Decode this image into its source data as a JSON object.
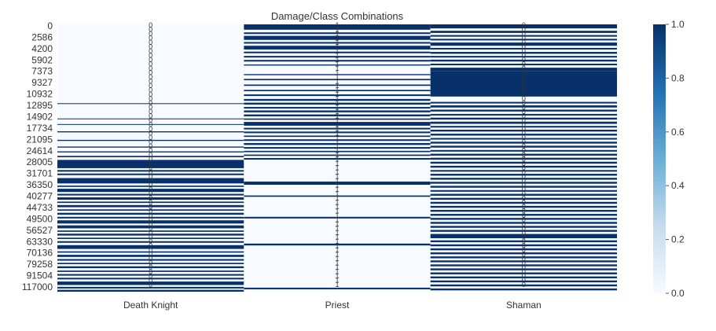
{
  "chart_data": {
    "type": "heatmap",
    "title": "Damage/Class Combinations",
    "xlabel": "",
    "ylabel": "",
    "categories": [
      "Death Knight",
      "Priest",
      "Shaman"
    ],
    "y_tick_labels": [
      "0",
      "2586",
      "4200",
      "5902",
      "7373",
      "9327",
      "10932",
      "12895",
      "14902",
      "17734",
      "21095",
      "24614",
      "28005",
      "31701",
      "36350",
      "40277",
      "44733",
      "49500",
      "56527",
      "63330",
      "70136",
      "79258",
      "91504",
      "117000"
    ],
    "value_range": [
      0.0,
      1.0
    ],
    "colormap": "Blues",
    "colorbar": {
      "ticks": [
        0.0,
        0.2,
        0.4,
        0.6,
        0.8,
        1.0
      ],
      "tick_labels": [
        "0.0",
        "0.2",
        "0.4",
        "0.6",
        "0.8",
        "1.0"
      ]
    },
    "series": [
      {
        "column": "Death Knight",
        "bands": [
          {
            "from": 0.295,
            "to": 0.298
          },
          {
            "from": 0.352,
            "to": 0.355
          },
          {
            "from": 0.373,
            "to": 0.376
          },
          {
            "from": 0.4,
            "to": 0.404
          },
          {
            "from": 0.432,
            "to": 0.436
          },
          {
            "from": 0.457,
            "to": 0.461
          },
          {
            "from": 0.475,
            "to": 0.479
          },
          {
            "from": 0.492,
            "to": 0.497
          },
          {
            "from": 0.507,
            "to": 0.538
          },
          {
            "from": 0.545,
            "to": 0.551
          },
          {
            "from": 0.558,
            "to": 0.564
          },
          {
            "from": 0.575,
            "to": 0.595
          },
          {
            "from": 0.603,
            "to": 0.608
          },
          {
            "from": 0.615,
            "to": 0.627
          },
          {
            "from": 0.634,
            "to": 0.64
          },
          {
            "from": 0.647,
            "to": 0.656
          },
          {
            "from": 0.663,
            "to": 0.668
          },
          {
            "from": 0.676,
            "to": 0.684
          },
          {
            "from": 0.692,
            "to": 0.697
          },
          {
            "from": 0.705,
            "to": 0.712
          },
          {
            "from": 0.72,
            "to": 0.726
          },
          {
            "from": 0.733,
            "to": 0.745
          },
          {
            "from": 0.752,
            "to": 0.763
          },
          {
            "from": 0.771,
            "to": 0.776
          },
          {
            "from": 0.783,
            "to": 0.79
          },
          {
            "from": 0.798,
            "to": 0.803
          },
          {
            "from": 0.811,
            "to": 0.817
          },
          {
            "from": 0.826,
            "to": 0.84
          },
          {
            "from": 0.849,
            "to": 0.854
          },
          {
            "from": 0.862,
            "to": 0.87
          },
          {
            "from": 0.878,
            "to": 0.884
          },
          {
            "from": 0.892,
            "to": 0.897
          },
          {
            "from": 0.905,
            "to": 0.912
          },
          {
            "from": 0.921,
            "to": 0.926
          },
          {
            "from": 0.934,
            "to": 0.94
          },
          {
            "from": 0.948,
            "to": 0.954
          },
          {
            "from": 0.962,
            "to": 0.975
          },
          {
            "from": 0.982,
            "to": 0.988
          },
          {
            "from": 0.993,
            "to": 1.0
          }
        ]
      },
      {
        "column": "Priest",
        "bands": [
          {
            "from": 0.0,
            "to": 0.02
          },
          {
            "from": 0.03,
            "to": 0.036
          },
          {
            "from": 0.043,
            "to": 0.058
          },
          {
            "from": 0.066,
            "to": 0.072
          },
          {
            "from": 0.08,
            "to": 0.094
          },
          {
            "from": 0.102,
            "to": 0.108
          },
          {
            "from": 0.118,
            "to": 0.124
          },
          {
            "from": 0.133,
            "to": 0.139
          },
          {
            "from": 0.15,
            "to": 0.154
          },
          {
            "from": 0.186,
            "to": 0.19
          },
          {
            "from": 0.204,
            "to": 0.209
          },
          {
            "from": 0.225,
            "to": 0.23
          },
          {
            "from": 0.245,
            "to": 0.25
          },
          {
            "from": 0.262,
            "to": 0.268
          },
          {
            "from": 0.279,
            "to": 0.286
          },
          {
            "from": 0.293,
            "to": 0.3
          },
          {
            "from": 0.309,
            "to": 0.315
          },
          {
            "from": 0.322,
            "to": 0.329
          },
          {
            "from": 0.337,
            "to": 0.344
          },
          {
            "from": 0.352,
            "to": 0.357
          },
          {
            "from": 0.365,
            "to": 0.379
          },
          {
            "from": 0.387,
            "to": 0.393
          },
          {
            "from": 0.401,
            "to": 0.407
          },
          {
            "from": 0.416,
            "to": 0.421
          },
          {
            "from": 0.43,
            "to": 0.436
          },
          {
            "from": 0.444,
            "to": 0.451
          },
          {
            "from": 0.459,
            "to": 0.465
          },
          {
            "from": 0.473,
            "to": 0.478
          },
          {
            "from": 0.487,
            "to": 0.492
          },
          {
            "from": 0.5,
            "to": 0.506
          },
          {
            "from": 0.588,
            "to": 0.6
          },
          {
            "from": 0.64,
            "to": 0.645
          },
          {
            "from": 0.72,
            "to": 0.726
          },
          {
            "from": 0.82,
            "to": 0.827
          },
          {
            "from": 0.985,
            "to": 0.991
          }
        ]
      },
      {
        "column": "Shaman",
        "bands": [
          {
            "from": 0.0,
            "to": 0.015
          },
          {
            "from": 0.024,
            "to": 0.032
          },
          {
            "from": 0.04,
            "to": 0.046
          },
          {
            "from": 0.054,
            "to": 0.06
          },
          {
            "from": 0.068,
            "to": 0.08
          },
          {
            "from": 0.088,
            "to": 0.094
          },
          {
            "from": 0.103,
            "to": 0.11
          },
          {
            "from": 0.118,
            "to": 0.124
          },
          {
            "from": 0.132,
            "to": 0.139
          },
          {
            "from": 0.147,
            "to": 0.153
          },
          {
            "from": 0.162,
            "to": 0.174
          },
          {
            "from": 0.174,
            "to": 0.27
          },
          {
            "from": 0.29,
            "to": 0.296
          },
          {
            "from": 0.303,
            "to": 0.311
          },
          {
            "from": 0.319,
            "to": 0.326
          },
          {
            "from": 0.335,
            "to": 0.341
          },
          {
            "from": 0.349,
            "to": 0.356
          },
          {
            "from": 0.364,
            "to": 0.372
          },
          {
            "from": 0.38,
            "to": 0.386
          },
          {
            "from": 0.394,
            "to": 0.401
          },
          {
            "from": 0.409,
            "to": 0.416
          },
          {
            "from": 0.425,
            "to": 0.431
          },
          {
            "from": 0.439,
            "to": 0.446
          },
          {
            "from": 0.454,
            "to": 0.461
          },
          {
            "from": 0.47,
            "to": 0.476
          },
          {
            "from": 0.484,
            "to": 0.491
          },
          {
            "from": 0.499,
            "to": 0.506
          },
          {
            "from": 0.514,
            "to": 0.521
          },
          {
            "from": 0.529,
            "to": 0.536
          },
          {
            "from": 0.545,
            "to": 0.551
          },
          {
            "from": 0.559,
            "to": 0.566
          },
          {
            "from": 0.574,
            "to": 0.581
          },
          {
            "from": 0.589,
            "to": 0.596
          },
          {
            "from": 0.604,
            "to": 0.611
          },
          {
            "from": 0.62,
            "to": 0.626
          },
          {
            "from": 0.634,
            "to": 0.641
          },
          {
            "from": 0.649,
            "to": 0.656
          },
          {
            "from": 0.664,
            "to": 0.671
          },
          {
            "from": 0.679,
            "to": 0.686
          },
          {
            "from": 0.694,
            "to": 0.701
          },
          {
            "from": 0.709,
            "to": 0.716
          },
          {
            "from": 0.724,
            "to": 0.731
          },
          {
            "from": 0.739,
            "to": 0.746
          },
          {
            "from": 0.754,
            "to": 0.761
          },
          {
            "from": 0.769,
            "to": 0.776
          },
          {
            "from": 0.784,
            "to": 0.8
          },
          {
            "from": 0.808,
            "to": 0.815
          },
          {
            "from": 0.823,
            "to": 0.83
          },
          {
            "from": 0.838,
            "to": 0.845
          },
          {
            "from": 0.853,
            "to": 0.86
          },
          {
            "from": 0.868,
            "to": 0.875
          },
          {
            "from": 0.883,
            "to": 0.89
          },
          {
            "from": 0.898,
            "to": 0.905
          },
          {
            "from": 0.913,
            "to": 0.92
          },
          {
            "from": 0.928,
            "to": 0.935
          },
          {
            "from": 0.943,
            "to": 0.95
          },
          {
            "from": 0.958,
            "to": 0.965
          },
          {
            "from": 0.973,
            "to": 0.98
          },
          {
            "from": 0.988,
            "to": 0.995
          }
        ]
      }
    ],
    "annotations": [
      {
        "column": "Death Knight",
        "text": "0"
      },
      {
        "column": "Priest",
        "text": "1"
      },
      {
        "column": "Shaman",
        "text": "0"
      }
    ],
    "colors": {
      "low": "#f7fbff",
      "high": "#08306b",
      "mid": "#6baed6",
      "text": "#333333"
    }
  }
}
